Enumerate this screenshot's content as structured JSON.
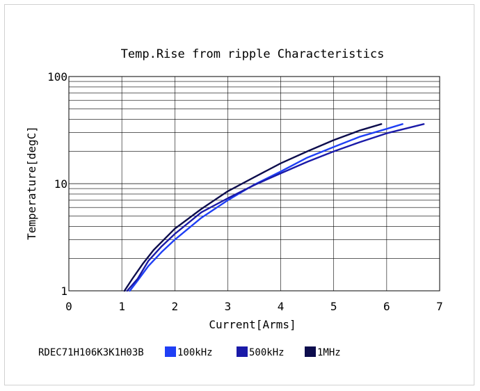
{
  "chart_data": {
    "type": "line",
    "title": "Temp.Rise from ripple Characteristics",
    "xlabel": "Current[Arms]",
    "ylabel": "Temperature[degC]",
    "xlim": [
      0,
      7
    ],
    "ylim": [
      1,
      100
    ],
    "y_scale": "log",
    "grid": true,
    "x_ticks": [
      "0",
      "1",
      "2",
      "3",
      "4",
      "5",
      "6",
      "7"
    ],
    "y_ticks": [
      "1",
      "10",
      "100"
    ],
    "legend_prefix": "RDEC71H106K3K1H03B",
    "legend_position": "bottom",
    "series": [
      {
        "name": "100kHz",
        "color": "#1f3ff5",
        "points": [
          [
            1.15,
            1.0
          ],
          [
            1.3,
            1.25
          ],
          [
            1.5,
            1.7
          ],
          [
            1.75,
            2.3
          ],
          [
            2.0,
            3.0
          ],
          [
            2.5,
            4.8
          ],
          [
            3.0,
            7.0
          ],
          [
            3.5,
            9.8
          ],
          [
            4.0,
            13.0
          ],
          [
            4.5,
            17.5
          ],
          [
            5.0,
            22.0
          ],
          [
            5.5,
            27.5
          ],
          [
            6.0,
            32.5
          ],
          [
            6.3,
            36.0
          ]
        ]
      },
      {
        "name": "500kHz",
        "color": "#1a1aa8",
        "points": [
          [
            1.1,
            1.0
          ],
          [
            1.3,
            1.3
          ],
          [
            1.5,
            1.9
          ],
          [
            1.75,
            2.6
          ],
          [
            2.0,
            3.4
          ],
          [
            2.5,
            5.4
          ],
          [
            3.0,
            7.3
          ],
          [
            3.5,
            9.7
          ],
          [
            4.0,
            12.5
          ],
          [
            4.5,
            16.0
          ],
          [
            5.0,
            20.0
          ],
          [
            5.5,
            24.5
          ],
          [
            6.0,
            29.5
          ],
          [
            6.7,
            36.0
          ]
        ]
      },
      {
        "name": "1MHz",
        "color": "#0d0d4d",
        "points": [
          [
            1.05,
            1.0
          ],
          [
            1.2,
            1.3
          ],
          [
            1.4,
            1.8
          ],
          [
            1.6,
            2.4
          ],
          [
            2.0,
            3.8
          ],
          [
            2.5,
            5.8
          ],
          [
            3.0,
            8.5
          ],
          [
            3.5,
            11.5
          ],
          [
            4.0,
            15.5
          ],
          [
            4.5,
            20.0
          ],
          [
            5.0,
            25.5
          ],
          [
            5.5,
            31.5
          ],
          [
            5.9,
            36.0
          ]
        ]
      }
    ]
  }
}
